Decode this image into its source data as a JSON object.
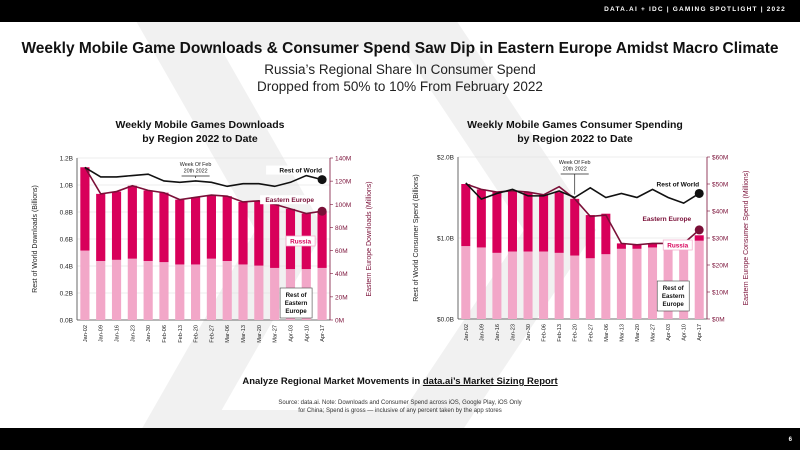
{
  "header": {
    "brand_text": "DATA.AI + IDC  |  GAMING SPOTLIGHT  |  2022"
  },
  "page_number": "6",
  "title": "Weekly Mobile Game Downloads & Consumer Spend Saw Dip in Eastern Europe Amidst Macro Climate",
  "subtitle_line1": "Russia’s Regional Share In Consumer Spend",
  "subtitle_line2": "Dropped from 50% to 10% From February 2022",
  "cta": {
    "prefix": "Analyze Regional Market Movements in ",
    "link": "data.ai’s Market Sizing Report"
  },
  "source_line1": "Source: data.ai. Note: Downloads and Consumer Spend across iOS, Google Play, iOS Only",
  "source_line2": "for China; Spend is gross — inclusive of any percent taken by the app stores",
  "colors": {
    "russia": "#f2a7c8",
    "rest_ee": "#d8005a",
    "rest_world": "#111111",
    "ee_line": "#7a1038",
    "ann_bg": "#f7e9ef"
  },
  "chart_data": [
    {
      "type": "bar",
      "title_line1": "Weekly Mobile Games Downloads",
      "title_line2": "by Region 2022 to Date",
      "ylabel": "Rest of World Downloads (Billions)",
      "y2label": "Eastern Europe  Downloads (Millions)",
      "categories": [
        "Jan-02",
        "Jan-09",
        "Jan-16",
        "Jan-23",
        "Jan-30",
        "Feb-06",
        "Feb-13",
        "Feb-20",
        "Feb-27",
        "Mar-06",
        "Mar-13",
        "Mar-20",
        "Mar-27",
        "Apr-03",
        "Apr-10",
        "Apr-17"
      ],
      "ylim": [
        0,
        1.2
      ],
      "yticks": [
        0,
        0.2,
        0.4,
        0.6,
        0.8,
        1.0,
        1.2
      ],
      "yticklabels": [
        "0.0B",
        "0.2B",
        "0.4B",
        "0.6B",
        "0.8B",
        "1.0B",
        "1.2B"
      ],
      "y2lim": [
        0,
        140
      ],
      "y2ticks": [
        0,
        20,
        40,
        60,
        80,
        100,
        120,
        140
      ],
      "y2ticklabels": [
        "0M",
        "20M",
        "40M",
        "60M",
        "80M",
        "100M",
        "120M",
        "140M"
      ],
      "series": [
        {
          "name": "Russia",
          "axis": "right",
          "kind": "bar",
          "values": [
            60,
            51,
            52,
            53,
            51,
            50,
            48,
            48,
            53,
            51,
            48,
            47,
            45,
            44,
            44,
            45
          ]
        },
        {
          "name": "Rest of Eastern Europe",
          "axis": "right",
          "kind": "bar",
          "values": [
            72,
            58,
            59,
            63,
            61,
            60,
            56,
            58,
            55,
            56,
            54,
            56,
            55,
            52,
            48,
            49
          ]
        },
        {
          "name": "Rest of World",
          "axis": "left",
          "kind": "line",
          "values": [
            1.13,
            1.06,
            1.06,
            1.07,
            1.08,
            1.03,
            1.02,
            1.03,
            1.02,
            0.99,
            1.01,
            1.01,
            0.99,
            1.02,
            1.07,
            1.04
          ]
        },
        {
          "name": "Eastern Europe",
          "axis": "right",
          "kind": "line",
          "values": [
            132,
            109,
            111,
            116,
            112,
            110,
            104,
            106,
            108,
            107,
            102,
            103,
            100,
            96,
            92,
            94
          ]
        }
      ],
      "legend": {
        "rest_world": "Rest of World",
        "eastern_europe": "Eastern Europe",
        "russia": "Russia",
        "rest_ee_line1": "Rest of",
        "rest_ee_line2": "Eastern",
        "rest_ee_line3": "Europe"
      },
      "annotation": {
        "line1": "Week Of Feb",
        "line2": "20th 2022",
        "category": "Feb-20"
      }
    },
    {
      "type": "bar",
      "title_line1": "Weekly Mobile Games Consumer Spending",
      "title_line2": "by Region 2022 to Date",
      "ylabel": "Rest of World Consumer Spend (Billions)",
      "y2label": "Eastern Europe  Consumer Spend (Millions)",
      "categories": [
        "Jan-02",
        "Jan-09",
        "Jan-16",
        "Jan-23",
        "Jan-30",
        "Feb-06",
        "Feb-13",
        "Feb-20",
        "Feb-27",
        "Mar-06",
        "Mar-13",
        "Mar-20",
        "Mar-27",
        "Apr-03",
        "Apr-10",
        "Apr-17"
      ],
      "ylim": [
        0,
        2.0
      ],
      "yticks": [
        0,
        1.0,
        2.0
      ],
      "yticklabels": [
        "$0.0B",
        "$1.0B",
        "$2.0B"
      ],
      "y2lim": [
        0,
        60
      ],
      "y2ticks": [
        0,
        10,
        20,
        30,
        40,
        50,
        60
      ],
      "y2ticklabels": [
        "$0M",
        "$10M",
        "$20M",
        "$30M",
        "$40M",
        "$50M",
        "$60M"
      ],
      "series": [
        {
          "name": "Russia",
          "axis": "right",
          "kind": "bar",
          "values": [
            27,
            26.5,
            24.5,
            25,
            25,
            25,
            24.5,
            23.5,
            22.5,
            24,
            26,
            26,
            26.5,
            26.5,
            27,
            29
          ]
        },
        {
          "name": "Rest of Eastern Europe",
          "axis": "right",
          "kind": "bar",
          "values": [
            23,
            21.5,
            22.5,
            22.5,
            22,
            21,
            22.5,
            21,
            16,
            15,
            2,
            1.5,
            1.5,
            1.5,
            1.5,
            2
          ]
        },
        {
          "name": "Rest of World",
          "axis": "left",
          "kind": "line",
          "values": [
            1.68,
            1.48,
            1.55,
            1.6,
            1.52,
            1.52,
            1.58,
            1.5,
            1.62,
            1.5,
            1.55,
            1.5,
            1.6,
            1.5,
            1.43,
            1.55
          ]
        },
        {
          "name": "Eastern Europe",
          "axis": "right",
          "kind": "line",
          "values": [
            50,
            48,
            47,
            47.5,
            47,
            46,
            49,
            44.5,
            38,
            38.5,
            28,
            27.5,
            28,
            28,
            28,
            33
          ]
        }
      ],
      "legend": {
        "rest_world": "Rest of World",
        "eastern_europe": "Eastern Europe",
        "russia": "Russia",
        "rest_ee_line1": "Rest of",
        "rest_ee_line2": "Eastern",
        "rest_ee_line3": "Europe"
      },
      "annotation": {
        "line1": "Week Of Feb",
        "line2": "20th 2022",
        "category": "Feb-20"
      }
    }
  ]
}
